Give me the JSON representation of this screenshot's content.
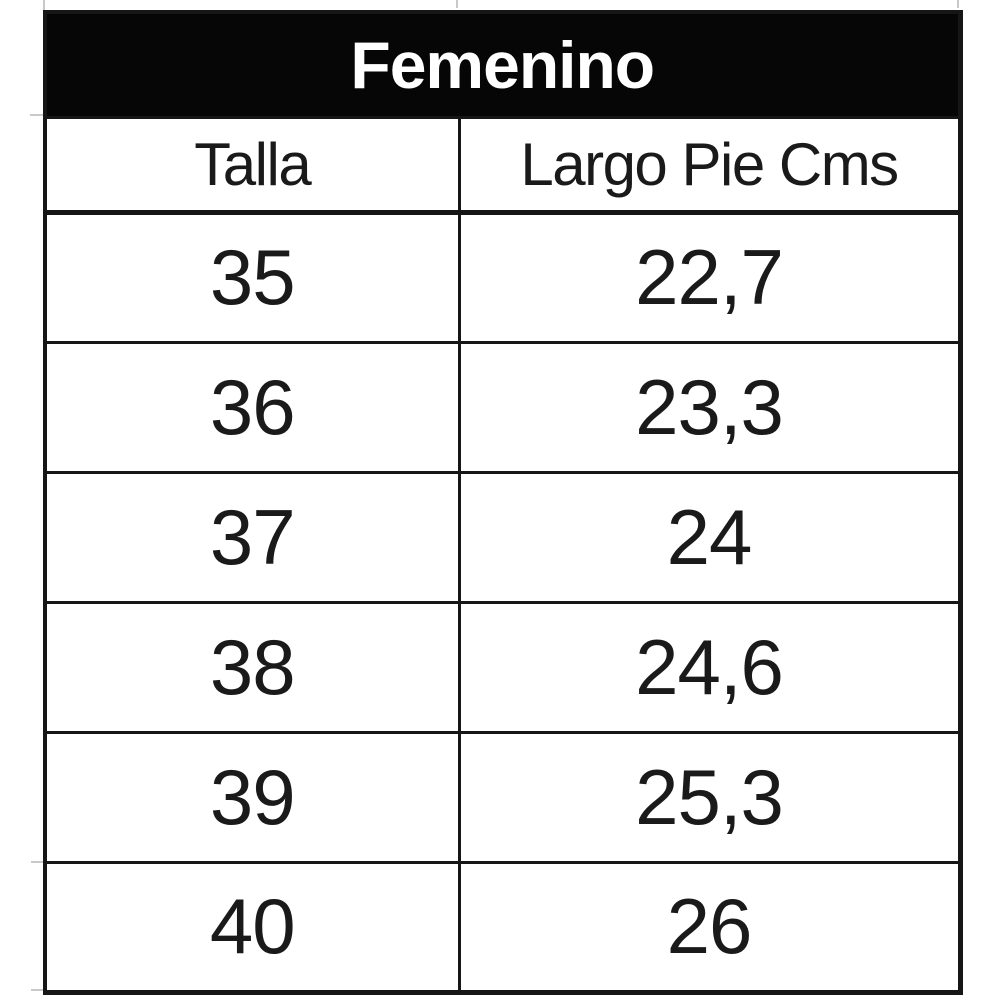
{
  "table": {
    "title": "Femenino",
    "columns": [
      "Talla",
      "Largo Pie Cms"
    ],
    "rows": [
      [
        "35",
        "22,7"
      ],
      [
        "36",
        "23,3"
      ],
      [
        "37",
        "24"
      ],
      [
        "38",
        "24,6"
      ],
      [
        "39",
        "25,3"
      ],
      [
        "40",
        "26"
      ]
    ]
  },
  "colors": {
    "title_bg": "#060606",
    "title_text": "#ffffff",
    "border": "#161616",
    "cell_text": "#1a1a1a",
    "background": "#ffffff"
  }
}
